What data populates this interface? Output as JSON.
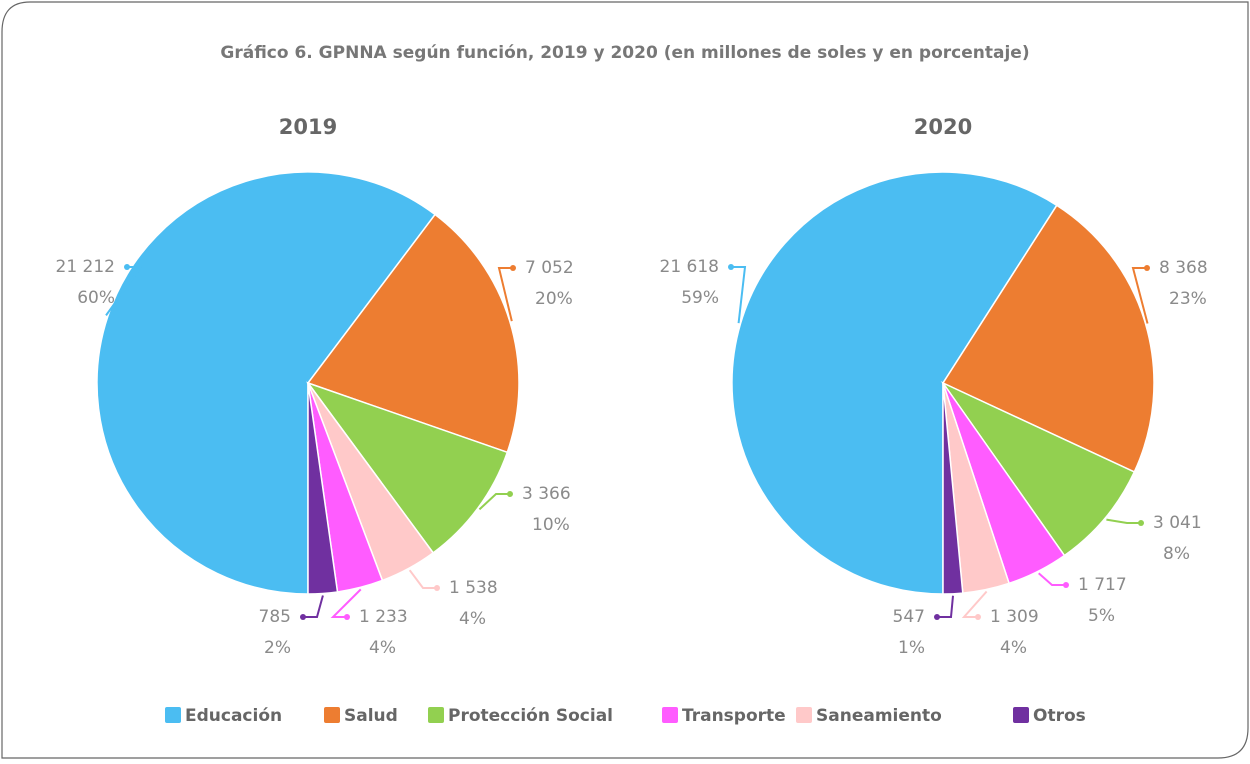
{
  "title": "Gráfico 6.  GPNNA según función, 2019 y 2020 (en millones de soles y en porcentaje)",
  "legend": [
    {
      "name": "Educación",
      "color": "#4bbdf2"
    },
    {
      "name": "Salud",
      "color": "#ed7d31"
    },
    {
      "name": "Protección Social",
      "color": "#92d050"
    },
    {
      "name": "Transporte",
      "color": "#ff5cff"
    },
    {
      "name": "Saneamiento",
      "color": "#ffc9c9"
    },
    {
      "name": "Otros",
      "color": "#7030a0"
    }
  ],
  "chart_data": [
    {
      "type": "pie",
      "title": "2019",
      "categories": [
        "Educación",
        "Salud",
        "Protección Social",
        "Saneamiento",
        "Transporte",
        "Otros"
      ],
      "colors": [
        "#4bbdf2",
        "#ed7d31",
        "#92d050",
        "#ffc9c9",
        "#ff5cff",
        "#7030a0"
      ],
      "values": [
        21212,
        7052,
        3366,
        1538,
        1233,
        785
      ],
      "value_labels": [
        "21 212",
        "7 052",
        "3 366",
        "1 538",
        "1 233",
        "785"
      ],
      "percentages": [
        60,
        20,
        10,
        4,
        4,
        2
      ],
      "percentage_labels": [
        "60%",
        "20%",
        "10%",
        "4%",
        "4%",
        "2%"
      ]
    },
    {
      "type": "pie",
      "title": "2020",
      "categories": [
        "Educación",
        "Salud",
        "Protección Social",
        "Transporte",
        "Saneamiento",
        "Otros"
      ],
      "colors": [
        "#4bbdf2",
        "#ed7d31",
        "#92d050",
        "#ff5cff",
        "#ffc9c9",
        "#7030a0"
      ],
      "values": [
        21618,
        8368,
        3041,
        1717,
        1309,
        547
      ],
      "value_labels": [
        "21 618",
        "8 368",
        "3 041",
        "1 717",
        "1 309",
        "547"
      ],
      "percentages": [
        59,
        23,
        8,
        5,
        4,
        1
      ],
      "percentage_labels": [
        "59%",
        "23%",
        "8%",
        "5%",
        "4%",
        "1%"
      ]
    }
  ]
}
